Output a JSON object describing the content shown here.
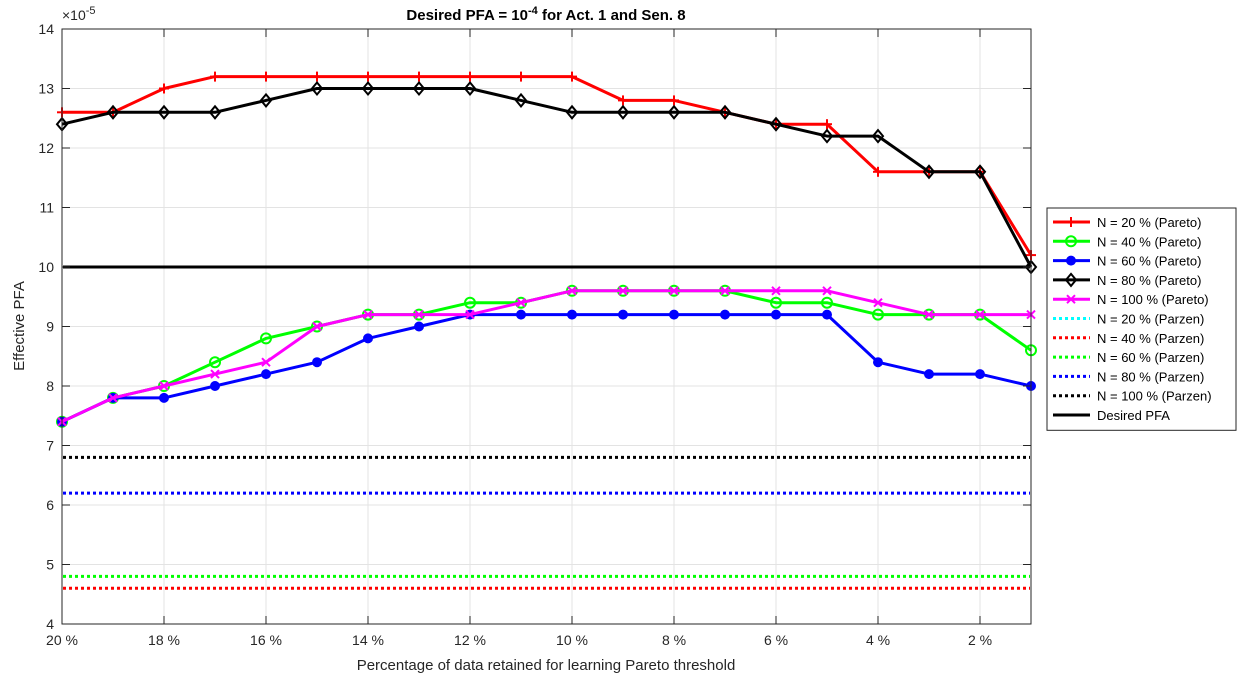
{
  "chart_data": {
    "type": "line",
    "title": "Desired PFA = 10",
    "title_exponent": "-4",
    "title_suffix": " for Act. 1 and Sen. 8",
    "xlabel": "Percentage of data retained for learning Pareto threshold",
    "ylabel": "Effective PFA",
    "y_multiplier_base": "×10",
    "y_multiplier_exp": "-5",
    "xlim": [
      20,
      1
    ],
    "ylim": [
      4,
      14
    ],
    "grid": true,
    "legend_position": "outside-right",
    "x_ticks": [
      20,
      18,
      16,
      14,
      12,
      10,
      8,
      6,
      4,
      2
    ],
    "x_tick_labels": [
      "20 %",
      "18 %",
      "16 %",
      "14 %",
      "12 %",
      "10 %",
      "8 %",
      "6 %",
      "4 %",
      "2 %"
    ],
    "y_ticks": [
      4,
      5,
      6,
      7,
      8,
      9,
      10,
      11,
      12,
      13,
      14
    ],
    "y_tick_labels": [
      "4",
      "5",
      "6",
      "7",
      "8",
      "9",
      "10",
      "11",
      "12",
      "13",
      "14"
    ],
    "x": [
      20,
      19,
      18,
      17,
      16,
      15,
      14,
      13,
      12,
      11,
      10,
      9,
      8,
      7,
      6,
      5,
      4,
      3,
      2,
      1
    ],
    "series": [
      {
        "name": "N = 20 % (Pareto)",
        "color": "#ff0000",
        "marker": "plus",
        "style": "solid",
        "values": [
          12.6,
          12.6,
          13.0,
          13.2,
          13.2,
          13.2,
          13.2,
          13.2,
          13.2,
          13.2,
          13.2,
          12.8,
          12.8,
          12.6,
          12.4,
          12.4,
          11.6,
          11.6,
          11.6,
          10.2
        ]
      },
      {
        "name": "N = 40 % (Pareto)",
        "color": "#00ff00",
        "marker": "circle",
        "style": "solid",
        "values": [
          7.4,
          7.8,
          8.0,
          8.4,
          8.8,
          9.0,
          9.2,
          9.2,
          9.4,
          9.4,
          9.6,
          9.6,
          9.6,
          9.6,
          9.4,
          9.4,
          9.2,
          9.2,
          9.2,
          8.6
        ]
      },
      {
        "name": "N = 60 % (Pareto)",
        "color": "#0000ff",
        "marker": "dot",
        "style": "solid",
        "values": [
          7.4,
          7.8,
          7.8,
          8.0,
          8.2,
          8.4,
          8.8,
          9.0,
          9.2,
          9.2,
          9.2,
          9.2,
          9.2,
          9.2,
          9.2,
          9.2,
          8.4,
          8.2,
          8.2,
          8.0
        ]
      },
      {
        "name": "N = 80 % (Pareto)",
        "color": "#000000",
        "marker": "diamond",
        "style": "solid",
        "values": [
          12.4,
          12.6,
          12.6,
          12.6,
          12.8,
          13.0,
          13.0,
          13.0,
          13.0,
          12.8,
          12.6,
          12.6,
          12.6,
          12.6,
          12.4,
          12.2,
          12.2,
          11.6,
          11.6,
          10.0
        ]
      },
      {
        "name": "N = 100 % (Pareto)",
        "color": "#ff00ff",
        "marker": "x",
        "style": "solid",
        "values": [
          7.4,
          7.8,
          8.0,
          8.2,
          8.4,
          9.0,
          9.2,
          9.2,
          9.2,
          9.4,
          9.6,
          9.6,
          9.6,
          9.6,
          9.6,
          9.6,
          9.4,
          9.2,
          9.2,
          9.2
        ]
      },
      {
        "name": "N = 20 % (Parzen)",
        "color": "#00ffff",
        "marker": "none",
        "style": "dotted",
        "constant": null
      },
      {
        "name": "N = 40 % (Parzen)",
        "color": "#ff0000",
        "marker": "none",
        "style": "dotted",
        "constant": 4.6
      },
      {
        "name": "N = 60 % (Parzen)",
        "color": "#00ff00",
        "marker": "none",
        "style": "dotted",
        "constant": 4.8
      },
      {
        "name": "N = 80 % (Parzen)",
        "color": "#0000ff",
        "marker": "none",
        "style": "dotted",
        "constant": 6.2
      },
      {
        "name": "N = 100 % (Parzen)",
        "color": "#000000",
        "marker": "none",
        "style": "dotted",
        "constant": 6.8
      },
      {
        "name": "Desired PFA",
        "color": "#000000",
        "marker": "none",
        "style": "solid",
        "constant": 10.0
      }
    ]
  }
}
